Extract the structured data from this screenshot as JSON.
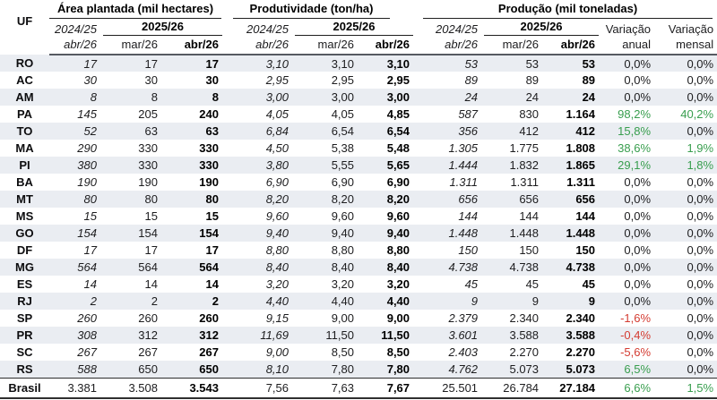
{
  "meta": {
    "accent_green": "#389e4e",
    "accent_red": "#d43c32",
    "stripe_color": "#eaedf2"
  },
  "header": {
    "uf": "UF",
    "groups": [
      {
        "title": "Área plantada (mil hectares)"
      },
      {
        "title": "Produtividade (ton/ha)"
      },
      {
        "title": "Produção (mil toneladas)"
      }
    ],
    "season_prev": "2024/25",
    "season_curr": "2025/26",
    "sub_prev": "abr/26",
    "sub_mar": "mar/26",
    "sub_abr": "abr/26",
    "variation_annual": {
      "line1": "Variação",
      "line2": "anual"
    },
    "variation_monthly": {
      "line1": "Variação",
      "line2": "mensal"
    }
  },
  "rows": [
    {
      "uf": "RO",
      "area": [
        "17",
        "17",
        "17"
      ],
      "yield": [
        "3,10",
        "3,10",
        "3,10"
      ],
      "output": [
        "53",
        "53",
        "53"
      ],
      "var_annual": "0,0%",
      "var_monthly": "0,0%"
    },
    {
      "uf": "AC",
      "area": [
        "30",
        "30",
        "30"
      ],
      "yield": [
        "2,95",
        "2,95",
        "2,95"
      ],
      "output": [
        "89",
        "89",
        "89"
      ],
      "var_annual": "0,0%",
      "var_monthly": "0,0%"
    },
    {
      "uf": "AM",
      "area": [
        "8",
        "8",
        "8"
      ],
      "yield": [
        "3,00",
        "3,00",
        "3,00"
      ],
      "output": [
        "24",
        "24",
        "24"
      ],
      "var_annual": "0,0%",
      "var_monthly": "0,0%"
    },
    {
      "uf": "PA",
      "area": [
        "145",
        "205",
        "240"
      ],
      "yield": [
        "4,05",
        "4,05",
        "4,85"
      ],
      "output": [
        "587",
        "830",
        "1.164"
      ],
      "var_annual": "98,2%",
      "var_monthly": "40,2%"
    },
    {
      "uf": "TO",
      "area": [
        "52",
        "63",
        "63"
      ],
      "yield": [
        "6,84",
        "6,54",
        "6,54"
      ],
      "output": [
        "356",
        "412",
        "412"
      ],
      "var_annual": "15,8%",
      "var_monthly": "0,0%"
    },
    {
      "uf": "MA",
      "area": [
        "290",
        "330",
        "330"
      ],
      "yield": [
        "4,50",
        "5,38",
        "5,48"
      ],
      "output": [
        "1.305",
        "1.775",
        "1.808"
      ],
      "var_annual": "38,6%",
      "var_monthly": "1,9%"
    },
    {
      "uf": "PI",
      "area": [
        "380",
        "330",
        "330"
      ],
      "yield": [
        "3,80",
        "5,55",
        "5,65"
      ],
      "output": [
        "1.444",
        "1.832",
        "1.865"
      ],
      "var_annual": "29,1%",
      "var_monthly": "1,8%"
    },
    {
      "uf": "BA",
      "area": [
        "190",
        "190",
        "190"
      ],
      "yield": [
        "6,90",
        "6,90",
        "6,90"
      ],
      "output": [
        "1.311",
        "1.311",
        "1.311"
      ],
      "var_annual": "0,0%",
      "var_monthly": "0,0%"
    },
    {
      "uf": "MT",
      "area": [
        "80",
        "80",
        "80"
      ],
      "yield": [
        "8,20",
        "8,20",
        "8,20"
      ],
      "output": [
        "656",
        "656",
        "656"
      ],
      "var_annual": "0,0%",
      "var_monthly": "0,0%"
    },
    {
      "uf": "MS",
      "area": [
        "15",
        "15",
        "15"
      ],
      "yield": [
        "9,60",
        "9,60",
        "9,60"
      ],
      "output": [
        "144",
        "144",
        "144"
      ],
      "var_annual": "0,0%",
      "var_monthly": "0,0%"
    },
    {
      "uf": "GO",
      "area": [
        "154",
        "154",
        "154"
      ],
      "yield": [
        "9,40",
        "9,40",
        "9,40"
      ],
      "output": [
        "1.448",
        "1.448",
        "1.448"
      ],
      "var_annual": "0,0%",
      "var_monthly": "0,0%"
    },
    {
      "uf": "DF",
      "area": [
        "17",
        "17",
        "17"
      ],
      "yield": [
        "8,80",
        "8,80",
        "8,80"
      ],
      "output": [
        "150",
        "150",
        "150"
      ],
      "var_annual": "0,0%",
      "var_monthly": "0,0%"
    },
    {
      "uf": "MG",
      "area": [
        "564",
        "564",
        "564"
      ],
      "yield": [
        "8,40",
        "8,40",
        "8,40"
      ],
      "output": [
        "4.738",
        "4.738",
        "4.738"
      ],
      "var_annual": "0,0%",
      "var_monthly": "0,0%"
    },
    {
      "uf": "ES",
      "area": [
        "14",
        "14",
        "14"
      ],
      "yield": [
        "3,20",
        "3,20",
        "3,20"
      ],
      "output": [
        "45",
        "45",
        "45"
      ],
      "var_annual": "0,0%",
      "var_monthly": "0,0%"
    },
    {
      "uf": "RJ",
      "area": [
        "2",
        "2",
        "2"
      ],
      "yield": [
        "4,40",
        "4,40",
        "4,40"
      ],
      "output": [
        "9",
        "9",
        "9"
      ],
      "var_annual": "0,0%",
      "var_monthly": "0,0%"
    },
    {
      "uf": "SP",
      "area": [
        "260",
        "260",
        "260"
      ],
      "yield": [
        "9,15",
        "9,00",
        "9,00"
      ],
      "output": [
        "2.379",
        "2.340",
        "2.340"
      ],
      "var_annual": "-1,6%",
      "var_monthly": "0,0%"
    },
    {
      "uf": "PR",
      "area": [
        "308",
        "312",
        "312"
      ],
      "yield": [
        "11,69",
        "11,50",
        "11,50"
      ],
      "output": [
        "3.601",
        "3.588",
        "3.588"
      ],
      "var_annual": "-0,4%",
      "var_monthly": "0,0%"
    },
    {
      "uf": "SC",
      "area": [
        "267",
        "267",
        "267"
      ],
      "yield": [
        "9,00",
        "8,50",
        "8,50"
      ],
      "output": [
        "2.403",
        "2.270",
        "2.270"
      ],
      "var_annual": "-5,6%",
      "var_monthly": "0,0%"
    },
    {
      "uf": "RS",
      "area": [
        "588",
        "650",
        "650"
      ],
      "yield": [
        "8,10",
        "7,80",
        "7,80"
      ],
      "output": [
        "4.762",
        "5.073",
        "5.073"
      ],
      "var_annual": "6,5%",
      "var_monthly": "0,0%"
    }
  ],
  "total_row": {
    "uf": "Brasil",
    "area": [
      "3.381",
      "3.508",
      "3.543"
    ],
    "yield": [
      "7,56",
      "7,63",
      "7,67"
    ],
    "output": [
      "25.501",
      "26.784",
      "27.184"
    ],
    "var_annual": "6,6%",
    "var_monthly": "1,5%"
  }
}
